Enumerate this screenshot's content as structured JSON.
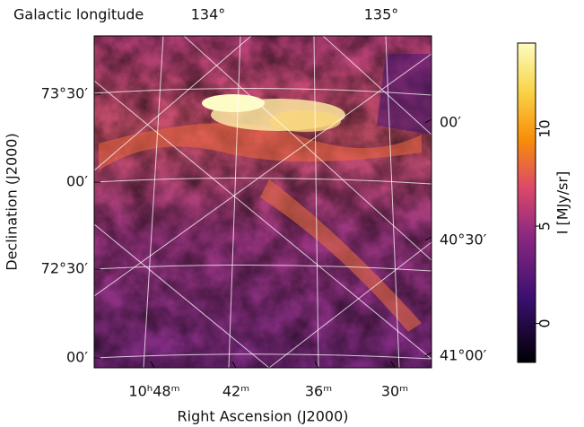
{
  "chart_data": {
    "type": "image",
    "xlabel": "Right Ascension (J2000)",
    "ylabel": "Declination (J2000)",
    "top_axis_label": "Galactic longitude",
    "bottom_tick_labels": [
      "10ʰ48ᵐ",
      "42ᵐ",
      "36ᵐ",
      "30ᵐ"
    ],
    "left_tick_labels": [
      "73°30′",
      "00′",
      "72°30′",
      "00′"
    ],
    "top_tick_labels": [
      "134°",
      "135°"
    ],
    "right_tick_labels": [
      "00′",
      "40°30′",
      "41°00′"
    ],
    "colorbar": {
      "label": "I [MJy/sr]",
      "lim": [
        -2,
        14.4
      ],
      "ticks": [
        0,
        5,
        10
      ],
      "colormap": "inferno"
    }
  }
}
